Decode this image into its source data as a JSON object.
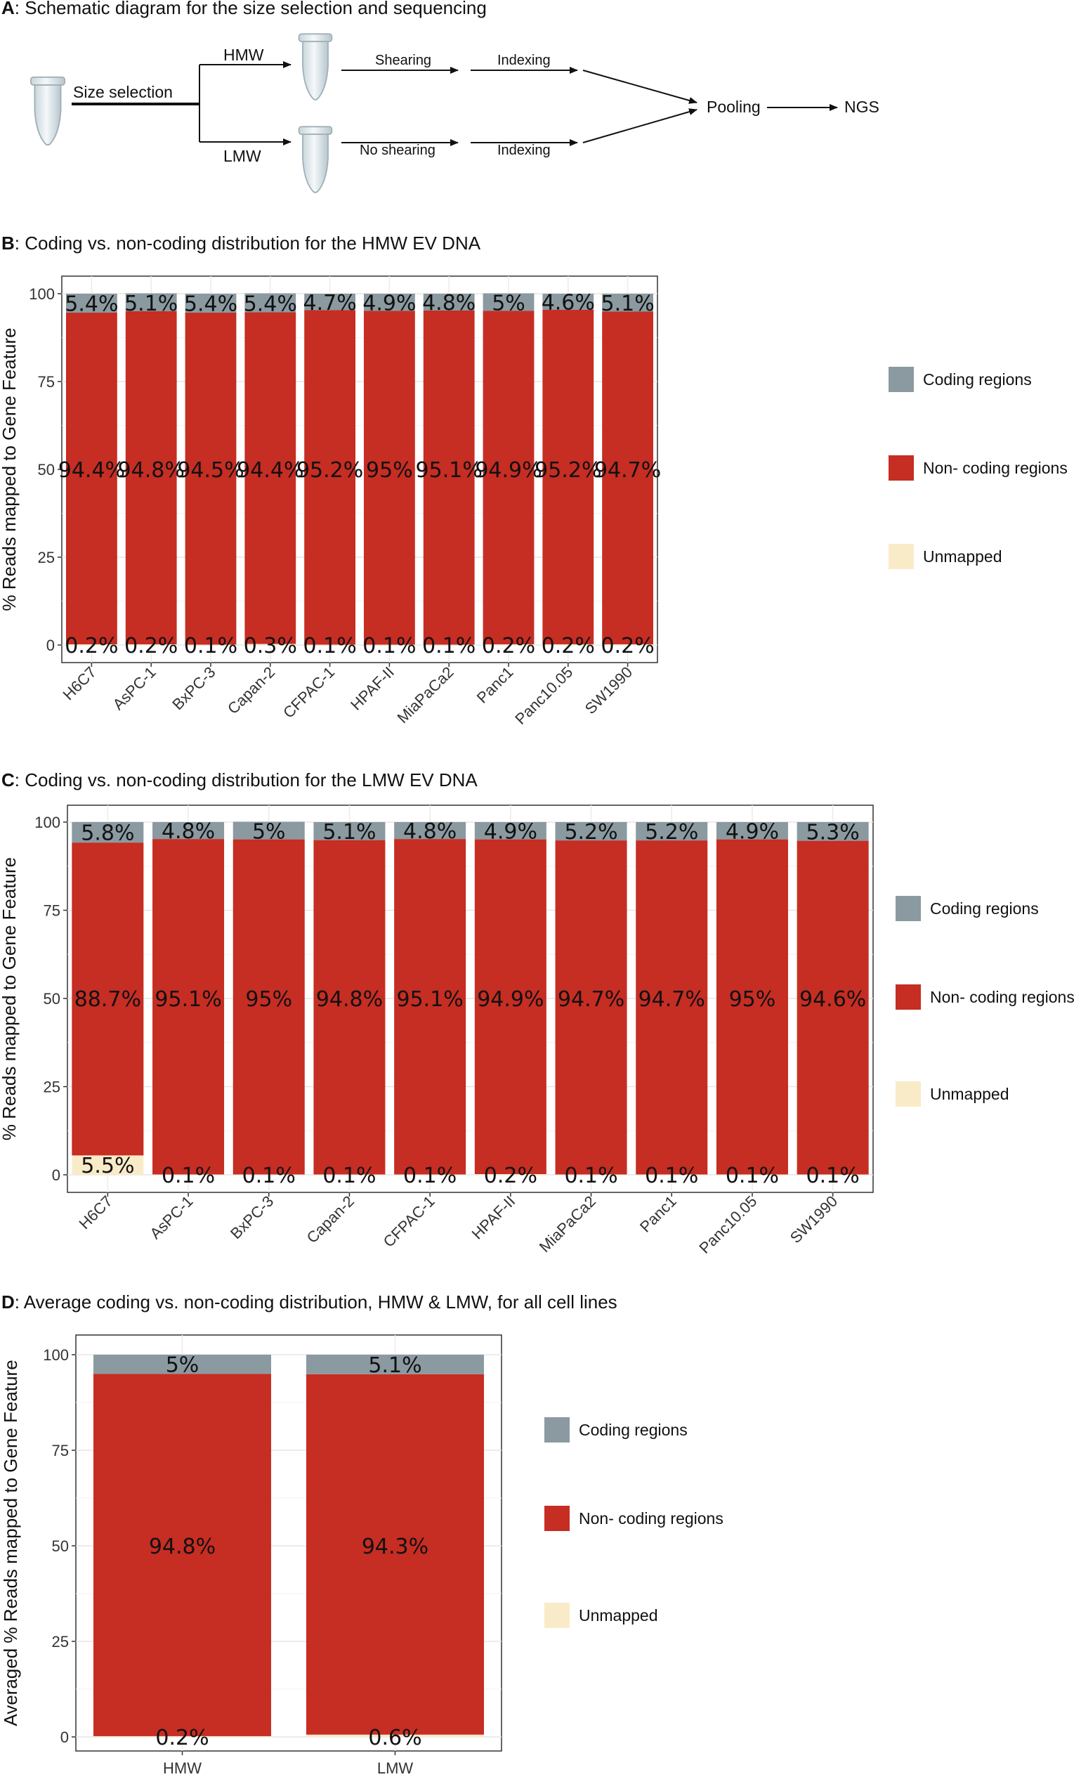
{
  "panel_a": {
    "letter": "A",
    "title": ": Schematic diagram for the size selection and sequencing",
    "size_selection": "Size selection",
    "hmw": "HMW",
    "lmw": "LMW",
    "shearing": "Shearing",
    "no_shearing": "No shearing",
    "indexing_top": "Indexing",
    "indexing_bottom": "Indexing",
    "pooling": "Pooling",
    "ngs": "NGS"
  },
  "colors": {
    "coding": "#8A9AA0",
    "noncoding": "#C62D23",
    "unmapped": "#FAEBC8"
  },
  "chart_data": [
    {
      "type": "bar",
      "stacked": true,
      "letter": "B",
      "title": ": Coding vs. non-coding distribution for the HMW EV DNA",
      "xlabel": "",
      "ylabel": "% Reads mapped to Gene Feature",
      "ylim": [
        0,
        100
      ],
      "yticks": [
        0,
        25,
        50,
        75,
        100
      ],
      "grid": true,
      "legend_position": "right",
      "categories": [
        "H6C7",
        "AsPC-1",
        "BxPC-3",
        "Capan-2",
        "CFPAC-1",
        "HPAF-II",
        "MiaPaCa2",
        "Panc1",
        "Panc10.05",
        "SW1990"
      ],
      "series": [
        {
          "name": "Unmapped",
          "color": "#FAEBC8",
          "values": [
            0.2,
            0.2,
            0.1,
            0.3,
            0.1,
            0.1,
            0.1,
            0.2,
            0.2,
            0.2
          ],
          "labels": [
            "0.2%",
            "0.2%",
            "0.1%",
            "0.3%",
            "0.1%",
            "0.1%",
            "0.1%",
            "0.2%",
            "0.2%",
            "0.2%"
          ]
        },
        {
          "name": "Non- coding regions",
          "color": "#C62D23",
          "values": [
            94.4,
            94.8,
            94.5,
            94.4,
            95.2,
            95.0,
            95.1,
            94.9,
            95.2,
            94.7
          ],
          "labels": [
            "94.4%",
            "94.8%",
            "94.5%",
            "94.4%",
            "95.2%",
            "95%",
            "95.1%",
            "94.9%",
            "95.2%",
            "94.7%"
          ]
        },
        {
          "name": "Coding regions",
          "color": "#8A9AA0",
          "values": [
            5.4,
            5.1,
            5.4,
            5.4,
            4.7,
            4.9,
            4.8,
            5.0,
            4.6,
            5.1
          ],
          "labels": [
            "5.4%",
            "5.1%",
            "5.4%",
            "5.4%",
            "4.7%",
            "4.9%",
            "4.8%",
            "5%",
            "4.6%",
            "5.1%"
          ]
        }
      ],
      "legend": [
        "Coding regions",
        "Non- coding regions",
        "Unmapped"
      ]
    },
    {
      "type": "bar",
      "stacked": true,
      "letter": "C",
      "title": ": Coding vs. non-coding distribution for the LMW EV DNA",
      "xlabel": "",
      "ylabel": "% Reads mapped to Gene Feature",
      "ylim": [
        0,
        100
      ],
      "yticks": [
        0,
        25,
        50,
        75,
        100
      ],
      "grid": true,
      "legend_position": "right",
      "categories": [
        "H6C7",
        "AsPC-1",
        "BxPC-3",
        "Capan-2",
        "CFPAC-1",
        "HPAF-II",
        "MiaPaCa2",
        "Panc1",
        "Panc10.05",
        "SW1990"
      ],
      "series": [
        {
          "name": "Unmapped",
          "color": "#FAEBC8",
          "values": [
            5.5,
            0.1,
            0.1,
            0.1,
            0.1,
            0.2,
            0.1,
            0.1,
            0.1,
            0.1
          ],
          "labels": [
            "5.5%",
            "0.1%",
            "0.1%",
            "0.1%",
            "0.1%",
            "0.2%",
            "0.1%",
            "0.1%",
            "0.1%",
            "0.1%"
          ]
        },
        {
          "name": "Non- coding regions",
          "color": "#C62D23",
          "values": [
            88.7,
            95.1,
            95.0,
            94.8,
            95.1,
            94.9,
            94.7,
            94.7,
            95.0,
            94.6
          ],
          "labels": [
            "88.7%",
            "95.1%",
            "95%",
            "94.8%",
            "95.1%",
            "94.9%",
            "94.7%",
            "94.7%",
            "95%",
            "94.6%"
          ]
        },
        {
          "name": "Coding regions",
          "color": "#8A9AA0",
          "values": [
            5.8,
            4.8,
            5.0,
            5.1,
            4.8,
            4.9,
            5.2,
            5.2,
            4.9,
            5.3
          ],
          "labels": [
            "5.8%",
            "4.8%",
            "5%",
            "5.1%",
            "4.8%",
            "4.9%",
            "5.2%",
            "5.2%",
            "4.9%",
            "5.3%"
          ]
        }
      ],
      "legend": [
        "Coding regions",
        "Non- coding regions",
        "Unmapped"
      ]
    },
    {
      "type": "bar",
      "stacked": true,
      "letter": "D",
      "title": ": Average coding vs. non-coding distribution, HMW & LMW, for all cell lines",
      "xlabel": "",
      "ylabel": "Averaged % Reads mapped to Gene Feature",
      "ylim": [
        0,
        100
      ],
      "yticks": [
        0,
        25,
        50,
        75,
        100
      ],
      "grid": true,
      "legend_position": "right",
      "categories": [
        "HMW",
        "LMW"
      ],
      "series": [
        {
          "name": "Unmapped",
          "color": "#FAEBC8",
          "values": [
            0.2,
            0.6
          ],
          "labels": [
            "0.2%",
            "0.6%"
          ]
        },
        {
          "name": "Non- coding regions",
          "color": "#C62D23",
          "values": [
            94.8,
            94.3
          ],
          "labels": [
            "94.8%",
            "94.3%"
          ]
        },
        {
          "name": "Coding regions",
          "color": "#8A9AA0",
          "values": [
            5.0,
            5.1
          ],
          "labels": [
            "5%",
            "5.1%"
          ]
        }
      ],
      "legend": [
        "Coding regions",
        "Non- coding regions",
        "Unmapped"
      ]
    }
  ]
}
